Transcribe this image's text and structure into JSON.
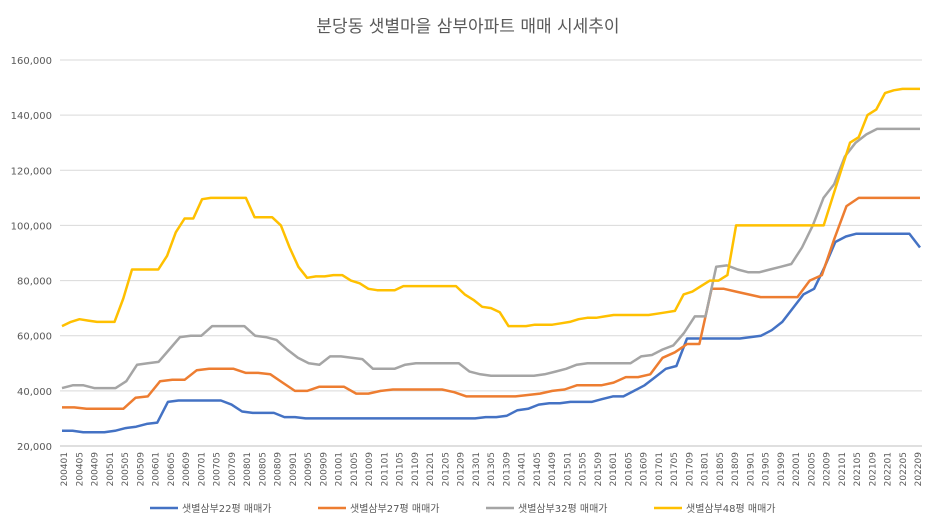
{
  "chart_data": {
    "type": "line",
    "title": "분당동 샛별마을 삼부아파트 매매 시세추이",
    "ylim": [
      20000,
      160000
    ],
    "yticks": [
      20000,
      40000,
      60000,
      80000,
      100000,
      120000,
      140000,
      160000
    ],
    "ytick_labels": [
      "20,000",
      "40,000",
      "60,000",
      "80,000",
      "100,000",
      "120,000",
      "140,000",
      "160,000"
    ],
    "xtick_labels": [
      "200401",
      "200405",
      "200409",
      "200501",
      "200505",
      "200509",
      "200601",
      "200605",
      "200609",
      "200701",
      "200705",
      "200709",
      "200801",
      "200805",
      "200809",
      "200901",
      "200905",
      "200909",
      "201001",
      "201005",
      "201009",
      "201101",
      "201105",
      "201109",
      "201201",
      "201205",
      "201209",
      "201301",
      "201305",
      "201309",
      "201401",
      "201405",
      "201409",
      "201501",
      "201505",
      "201509",
      "201601",
      "201605",
      "201609",
      "201701",
      "201705",
      "201709",
      "201801",
      "201805",
      "201809",
      "201901",
      "201905",
      "201909",
      "202001",
      "202005",
      "202009",
      "202101",
      "202105",
      "202109",
      "202201",
      "202205",
      "202209"
    ],
    "grid": true,
    "legend_position": "bottom",
    "series": [
      {
        "name": "샛별삼부22평 매매가",
        "color": "#4472C4",
        "values": [
          25500,
          25500,
          25000,
          25000,
          25000,
          25500,
          26500,
          27000,
          28000,
          28500,
          36000,
          36500,
          36500,
          36500,
          36500,
          36500,
          35000,
          32500,
          32000,
          32000,
          32000,
          30500,
          30500,
          30000,
          30000,
          30000,
          30000,
          30000,
          30000,
          30000,
          30000,
          30000,
          30000,
          30000,
          30000,
          30000,
          30000,
          30000,
          30000,
          30000,
          30500,
          30500,
          31000,
          33000,
          33500,
          35000,
          35500,
          35500,
          36000,
          36000,
          36000,
          37000,
          38000,
          38000,
          40000,
          42000,
          45000,
          48000,
          49000,
          59000,
          59000,
          59000,
          59000,
          59000,
          59000,
          59500,
          60000,
          62000,
          65000,
          70000,
          75000,
          77000,
          85000,
          94000,
          96000,
          97000,
          97000,
          97000,
          97000,
          97000,
          97000,
          92000
        ],
        "x_index": [
          0,
          3,
          4,
          8,
          10,
          12,
          14,
          16,
          18,
          20,
          23,
          24,
          28,
          30,
          32,
          33,
          34,
          35,
          36,
          40,
          42,
          44,
          46,
          48,
          52,
          56,
          60,
          64,
          68,
          72,
          76,
          80,
          84,
          88,
          92,
          96,
          100,
          104,
          108,
          112,
          116,
          120,
          124,
          128,
          132,
          136,
          140,
          144,
          148,
          152,
          156,
          160,
          164,
          168,
          172,
          176,
          180,
          184,
          188,
          192,
          196,
          200,
          204,
          208,
          212,
          214,
          216,
          218,
          220,
          222,
          224,
          226,
          228,
          230,
          234,
          236,
          240,
          244,
          246,
          248,
          250,
          225
        ]
      },
      {
        "name": "샛별삼부27평 매매가",
        "color": "#ED7D31",
        "values": [
          34000,
          34000,
          33500,
          33500,
          33500,
          33500,
          37500,
          38000,
          43500,
          44000,
          44000,
          47500,
          48000,
          48000,
          48000,
          46500,
          46500,
          46000,
          43000,
          40000,
          40000,
          41500,
          41500,
          41500,
          39000,
          39000,
          40000,
          40500,
          40500,
          40500,
          40500,
          40500,
          39500,
          38000,
          38000,
          38000,
          38000,
          38000,
          38500,
          39000,
          40000,
          40500,
          42000,
          42000,
          42000,
          43000,
          45000,
          45000,
          46000,
          52000,
          54000,
          57000,
          57000,
          77000,
          77000,
          76000,
          75000,
          74000,
          74000,
          74000,
          74000,
          80000,
          82000,
          95000,
          107000,
          110000,
          110000,
          110000,
          110000,
          110000,
          110000
        ]
      },
      {
        "name": "샛별삼부32평 매매가",
        "color": "#A5A5A5",
        "values": [
          41000,
          42000,
          42000,
          41000,
          41000,
          41000,
          43500,
          49500,
          50000,
          50500,
          55000,
          59500,
          60000,
          60000,
          63500,
          63500,
          63500,
          63500,
          60000,
          59500,
          58500,
          55000,
          52000,
          50000,
          49500,
          52500,
          52500,
          52000,
          51500,
          48000,
          48000,
          48000,
          49500,
          50000,
          50000,
          50000,
          50000,
          50000,
          47000,
          46000,
          45500,
          45500,
          45500,
          45500,
          45500,
          46000,
          47000,
          48000,
          49500,
          50000,
          50000,
          50000,
          50000,
          50000,
          52500,
          53000,
          55000,
          56500,
          61000,
          67000,
          67000,
          85000,
          85500,
          84000,
          83000,
          83000,
          84000,
          85000,
          86000,
          92000,
          100000,
          110000,
          115000,
          125000,
          130000,
          133000,
          135000,
          135000,
          135000,
          135000,
          135000
        ]
      },
      {
        "name": "샛별삼부48평 매매가",
        "color": "#FFC000",
        "values": [
          63500,
          65000,
          66000,
          65500,
          65000,
          65000,
          65000,
          73500,
          84000,
          84000,
          84000,
          84000,
          89000,
          97500,
          102500,
          102500,
          109500,
          110000,
          110000,
          110000,
          110000,
          110000,
          103000,
          103000,
          103000,
          100000,
          92000,
          85000,
          81000,
          81500,
          81500,
          82000,
          82000,
          80000,
          79000,
          77000,
          76500,
          76500,
          76500,
          78000,
          78000,
          78000,
          78000,
          78000,
          78000,
          78000,
          75000,
          73000,
          70500,
          70000,
          68500,
          63500,
          63500,
          63500,
          64000,
          64000,
          64000,
          64500,
          65000,
          66000,
          66500,
          66500,
          67000,
          67500,
          67500,
          67500,
          67500,
          67500,
          68000,
          68500,
          69000,
          75000,
          76000,
          78000,
          80000,
          80000,
          82000,
          100000,
          100000,
          100000,
          100000,
          100000,
          100000,
          100000,
          100000,
          100000,
          100000,
          100000,
          110000,
          120000,
          130000,
          132000,
          140000,
          142000,
          148000,
          149000,
          149500,
          149500,
          149500
        ]
      }
    ]
  }
}
